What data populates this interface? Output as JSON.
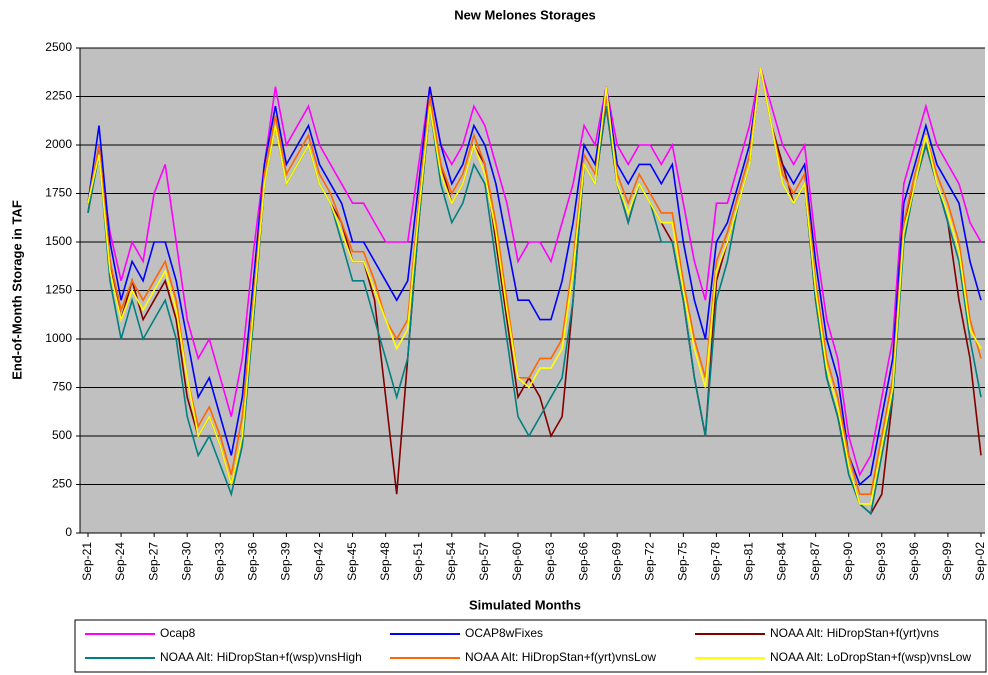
{
  "chart_data": {
    "type": "line",
    "title": "New Melones Storages",
    "x_label": "Simulated Months",
    "y_label": "End-of-Month Storage in TAF",
    "categories": [
      "Sep-21",
      null,
      null,
      "Sep-24",
      null,
      null,
      "Sep-27",
      null,
      null,
      "Sep-30",
      null,
      null,
      "Sep-33",
      null,
      null,
      "Sep-36",
      null,
      null,
      "Sep-39",
      null,
      null,
      "Sep-42",
      null,
      null,
      "Sep-45",
      null,
      null,
      "Sep-48",
      null,
      null,
      "Sep-51",
      null,
      null,
      "Sep-54",
      null,
      null,
      "Sep-57",
      null,
      null,
      "Sep-60",
      null,
      null,
      "Sep-63",
      null,
      null,
      "Sep-66",
      null,
      null,
      "Sep-69",
      null,
      null,
      "Sep-72",
      null,
      null,
      "Sep-75",
      null,
      null,
      "Sep-78",
      null,
      null,
      "Sep-81",
      null,
      null,
      "Sep-84",
      null,
      null,
      "Sep-87",
      null,
      null,
      "Sep-90",
      null,
      null,
      "Sep-93",
      null,
      null,
      "Sep-96",
      null,
      null,
      "Sep-99",
      null,
      null,
      "Sep-02"
    ],
    "ylim": [
      0,
      2500
    ],
    "yticks": [
      0,
      250,
      500,
      750,
      1000,
      1250,
      1500,
      1750,
      2000,
      2250,
      2500
    ],
    "grid": true,
    "series": [
      {
        "name": "Ocap8",
        "color": "#ff00ff",
        "values": [
          1700,
          1950,
          1550,
          1300,
          1500,
          1400,
          1750,
          1900,
          1500,
          1100,
          900,
          1000,
          800,
          600,
          900,
          1450,
          1900,
          2300,
          2000,
          2100,
          2200,
          2000,
          1900,
          1800,
          1700,
          1700,
          1600,
          1500,
          1500,
          1500,
          1900,
          2300,
          2000,
          1900,
          2000,
          2200,
          2100,
          1900,
          1700,
          1400,
          1500,
          1500,
          1400,
          1600,
          1800,
          2100,
          2000,
          2300,
          2000,
          1900,
          2000,
          2000,
          1900,
          2000,
          1700,
          1400,
          1200,
          1700,
          1700,
          1900,
          2100,
          2400,
          2200,
          2000,
          1900,
          2000,
          1500,
          1100,
          900,
          500,
          300,
          400,
          700,
          1000,
          1800,
          2000,
          2200,
          2000,
          1900,
          1800,
          1600,
          1500
        ]
      },
      {
        "name": "OCAP8wFixes",
        "color": "#0000ff",
        "values": [
          1700,
          2100,
          1500,
          1200,
          1400,
          1300,
          1500,
          1500,
          1300,
          1000,
          700,
          800,
          600,
          400,
          700,
          1300,
          1900,
          2200,
          1900,
          2000,
          2100,
          1900,
          1800,
          1700,
          1500,
          1500,
          1400,
          1300,
          1200,
          1300,
          1800,
          2300,
          2000,
          1800,
          1900,
          2100,
          2000,
          1800,
          1500,
          1200,
          1200,
          1100,
          1100,
          1300,
          1600,
          2000,
          1900,
          2300,
          1900,
          1800,
          1900,
          1900,
          1800,
          1900,
          1500,
          1200,
          1000,
          1500,
          1600,
          1800,
          2000,
          2400,
          2100,
          1900,
          1800,
          1900,
          1400,
          1000,
          800,
          400,
          250,
          300,
          600,
          900,
          1700,
          1900,
          2100,
          1900,
          1800,
          1700,
          1400,
          1200
        ]
      },
      {
        "name": "NOAA Alt: HiDropStan+f(yrt)vns",
        "color": "#800000",
        "values": [
          1650,
          2000,
          1400,
          1100,
          1300,
          1100,
          1200,
          1300,
          1100,
          700,
          500,
          600,
          450,
          250,
          500,
          1100,
          1800,
          2100,
          1800,
          1900,
          2000,
          1800,
          1700,
          1600,
          1400,
          1400,
          1200,
          700,
          200,
          900,
          1600,
          2200,
          1900,
          1700,
          1800,
          2000,
          1900,
          1500,
          1100,
          700,
          800,
          700,
          500,
          600,
          1200,
          1900,
          1800,
          2200,
          1800,
          1600,
          1800,
          1700,
          1600,
          1500,
          1200,
          800,
          500,
          1300,
          1500,
          1700,
          1900,
          2400,
          2100,
          1900,
          1700,
          1800,
          1200,
          800,
          600,
          350,
          150,
          100,
          200,
          700,
          1600,
          1800,
          2000,
          1800,
          1600,
          1200,
          900,
          400
        ]
      },
      {
        "name": "NOAA Alt: HiDropStan+f(wsp)vnsHigh",
        "color": "#008080",
        "values": [
          1650,
          1950,
          1300,
          1000,
          1200,
          1000,
          1100,
          1200,
          1000,
          600,
          400,
          500,
          350,
          200,
          450,
          1100,
          1800,
          2100,
          1800,
          1900,
          2000,
          1800,
          1700,
          1500,
          1300,
          1300,
          1100,
          900,
          700,
          900,
          1600,
          2200,
          1800,
          1600,
          1700,
          1900,
          1800,
          1400,
          1000,
          600,
          500,
          600,
          700,
          800,
          1200,
          1900,
          1800,
          2200,
          1800,
          1600,
          1800,
          1700,
          1500,
          1500,
          1200,
          800,
          500,
          1200,
          1400,
          1700,
          1900,
          2400,
          2100,
          1800,
          1700,
          1800,
          1200,
          800,
          600,
          300,
          150,
          100,
          400,
          700,
          1500,
          1800,
          2000,
          1800,
          1600,
          1400,
          1000,
          700
        ]
      },
      {
        "name": "NOAA Alt: HiDropStan+f(yrt)vnsLow",
        "color": "#ff6600",
        "values": [
          1700,
          2000,
          1400,
          1150,
          1300,
          1200,
          1300,
          1400,
          1200,
          800,
          550,
          650,
          500,
          300,
          600,
          1200,
          1850,
          2150,
          1850,
          1950,
          2050,
          1850,
          1750,
          1600,
          1450,
          1450,
          1300,
          1100,
          1000,
          1100,
          1700,
          2250,
          1900,
          1750,
          1850,
          2050,
          1900,
          1600,
          1200,
          800,
          800,
          900,
          900,
          1000,
          1400,
          1950,
          1850,
          2250,
          1850,
          1700,
          1850,
          1750,
          1650,
          1650,
          1300,
          1000,
          800,
          1400,
          1550,
          1750,
          1950,
          2400,
          2100,
          1850,
          1750,
          1850,
          1300,
          900,
          700,
          400,
          200,
          200,
          500,
          800,
          1600,
          1850,
          2050,
          1850,
          1700,
          1500,
          1100,
          900
        ]
      },
      {
        "name": "NOAA Alt: LoDropStan+f(wsp)vnsLow",
        "color": "#ffff00",
        "values": [
          1700,
          1950,
          1350,
          1100,
          1250,
          1150,
          1250,
          1350,
          1150,
          800,
          500,
          600,
          450,
          250,
          500,
          1150,
          1800,
          2100,
          1800,
          1900,
          2000,
          1800,
          1700,
          1550,
          1400,
          1400,
          1250,
          1100,
          950,
          1050,
          1650,
          2200,
          1850,
          1700,
          1800,
          2000,
          1850,
          1550,
          1150,
          800,
          750,
          850,
          850,
          950,
          1350,
          1900,
          1800,
          2300,
          1800,
          1650,
          1800,
          1700,
          1600,
          1600,
          1250,
          950,
          750,
          1350,
          1500,
          1700,
          1900,
          2400,
          2100,
          1800,
          1700,
          1800,
          1250,
          850,
          650,
          350,
          150,
          150,
          450,
          750,
          1550,
          1800,
          2050,
          1800,
          1650,
          1450,
          1050,
          950
        ]
      }
    ]
  }
}
